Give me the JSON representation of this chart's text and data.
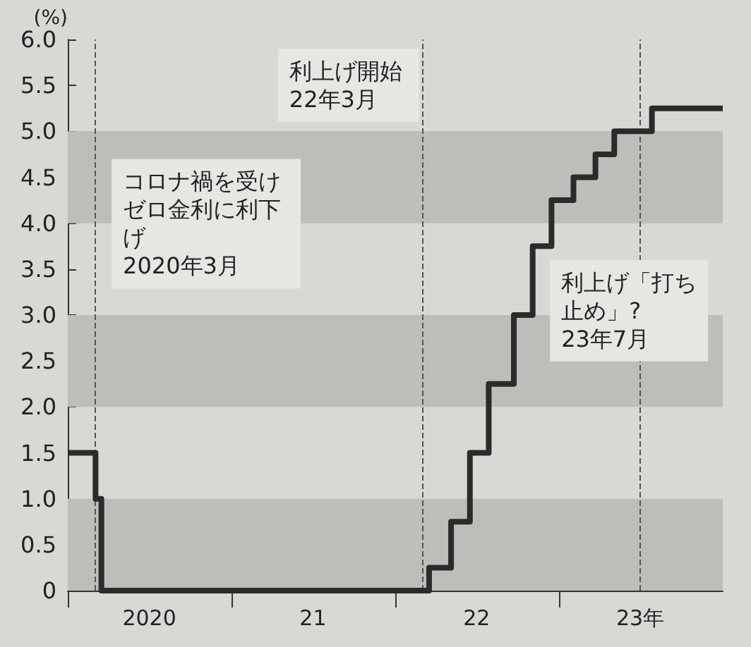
{
  "chart_data": {
    "type": "step",
    "ylabel": "(%)",
    "x": [
      "2020-01",
      "2020-03-03",
      "2020-03-16",
      "2022-03-17",
      "2022-05-05",
      "2022-06-16",
      "2022-07-28",
      "2022-09-22",
      "2022-11-03",
      "2022-12-15",
      "2023-02-02",
      "2023-03-23",
      "2023-05-04",
      "2023-07-27",
      "2024-01"
    ],
    "series": [
      {
        "color": "#2b2b2b",
        "values": [
          1.5,
          1.0,
          0,
          0.25,
          0.75,
          1.5,
          2.25,
          3.0,
          3.75,
          4.25,
          4.5,
          4.75,
          5.0,
          5.25,
          5.25
        ]
      }
    ],
    "xlim": [
      "2020-01",
      "2024-01"
    ],
    "xticks": [
      {
        "value": "2020-01",
        "label": null
      },
      {
        "value": "2020-07",
        "label": "2020"
      },
      {
        "value": "2021-01",
        "label": null
      },
      {
        "value": "2021-07",
        "label": "21"
      },
      {
        "value": "2022-01",
        "label": null
      },
      {
        "value": "2022-07",
        "label": "22"
      },
      {
        "value": "2023-01",
        "label": null
      },
      {
        "value": "2023-07",
        "label": "23年"
      }
    ],
    "ylim": [
      0,
      6
    ],
    "yticks": [
      0,
      0.5,
      {
        "value": 1,
        "label": "1.0"
      },
      1.5,
      {
        "value": 2,
        "label": "2.0"
      },
      2.5,
      {
        "value": 3,
        "label": "3.0"
      },
      3.5,
      {
        "value": 4,
        "label": "4.0"
      },
      4.5,
      {
        "value": 5,
        "label": "5.0"
      },
      5.5,
      {
        "value": 6,
        "label": "6.0"
      }
    ],
    "bands": [
      {
        "axis": "y",
        "from": 0,
        "to": 1,
        "color": "#bdbdba"
      },
      {
        "axis": "y",
        "from": 2,
        "to": 3,
        "color": "#bdbdba"
      },
      {
        "axis": "y",
        "from": 4,
        "to": 5,
        "color": "#bdbdba"
      }
    ],
    "ref_lines": [
      {
        "axis": "x",
        "value": "2020-03",
        "label": "コロナ禍を受けゼロ金利に利下げ\n2020年3月",
        "color": "#555555",
        "line_style": "dashed"
      },
      {
        "axis": "x",
        "value": "2022-03",
        "label": "利上げ開始\n22年3月",
        "color": "#555555",
        "line_style": "dashed"
      },
      {
        "axis": "x",
        "value": "2023-07",
        "label": "利上げ「打ち止め」?\n23年7月",
        "color": "#555555",
        "line_style": "dashed"
      }
    ]
  }
}
